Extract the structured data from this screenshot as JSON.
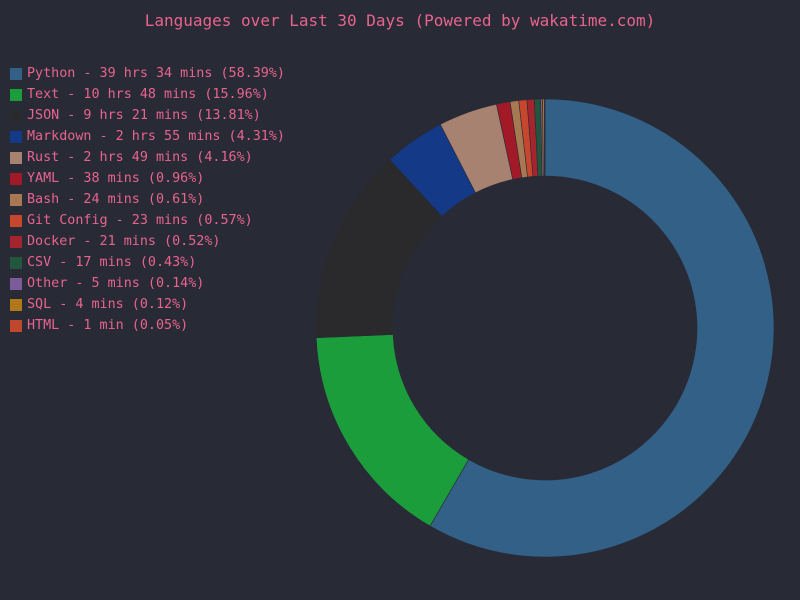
{
  "chart_data": {
    "type": "pie",
    "subtype": "donut",
    "title": "Languages over Last 30 Days (Powered by wakatime.com)",
    "legend_position": "top-left",
    "title_color": "#e8648e",
    "background_color": "#282a36",
    "start_angle": "top, clockwise",
    "series": [
      {
        "label": "Python - 39 hrs 34 mins (58.39%)",
        "value": 58.39,
        "color": "#326086"
      },
      {
        "label": "Text - 10 hrs 48 mins (15.96%)",
        "value": 15.96,
        "color": "#1c9d3b"
      },
      {
        "label": "JSON - 9 hrs 21 mins (13.81%)",
        "value": 13.81,
        "color": "#2a2a2c"
      },
      {
        "label": "Markdown - 2 hrs 55 mins (4.31%)",
        "value": 4.31,
        "color": "#133987"
      },
      {
        "label": "Rust - 2 hrs 49 mins (4.16%)",
        "value": 4.16,
        "color": "#a88270"
      },
      {
        "label": "YAML - 38 mins (0.96%)",
        "value": 0.96,
        "color": "#a21928"
      },
      {
        "label": "Bash - 24 mins (0.61%)",
        "value": 0.61,
        "color": "#a77952"
      },
      {
        "label": "Git Config - 23 mins (0.57%)",
        "value": 0.57,
        "color": "#c6472e"
      },
      {
        "label": "Docker - 21 mins (0.52%)",
        "value": 0.52,
        "color": "#a5252f"
      },
      {
        "label": "CSV - 17 mins (0.43%)",
        "value": 0.43,
        "color": "#22573e"
      },
      {
        "label": "Other - 5 mins (0.14%)",
        "value": 0.14,
        "color": "#7b5b9a"
      },
      {
        "label": "SQL - 4 mins (0.12%)",
        "value": 0.12,
        "color": "#b07818"
      },
      {
        "label": "HTML - 1 min (0.05%)",
        "value": 0.05,
        "color": "#c0472e"
      }
    ]
  }
}
